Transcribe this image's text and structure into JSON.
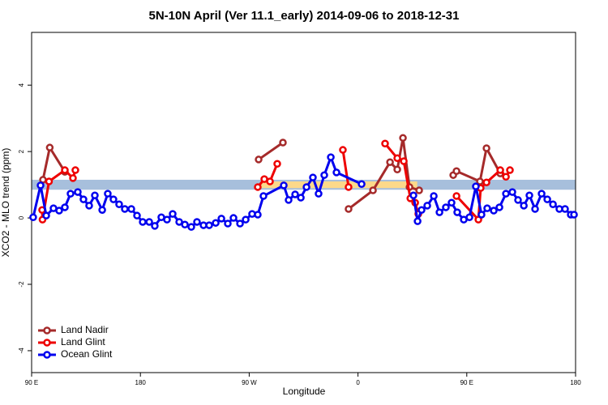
{
  "chart_data": {
    "type": "line",
    "title": "5N-10N April (Ver 11.1_early)   2014-09-06 to 2018-12-31",
    "x_label": "Longitude",
    "y_label": "XCO2 - MLO trend (ppm)",
    "xlim": [
      90,
      540
    ],
    "ylim": [
      -4.66,
      5.59
    ],
    "xticks": [
      {
        "value": 90,
        "label": "90 E"
      },
      {
        "value": 180,
        "label": "180"
      },
      {
        "value": 270,
        "label": "90 W"
      },
      {
        "value": 360,
        "label": "0"
      },
      {
        "value": 450,
        "label": "90 E"
      },
      {
        "value": 540,
        "label": "180"
      }
    ],
    "yticks": [
      -4,
      -2,
      0,
      2,
      4
    ],
    "legend": "bottom-left",
    "bands": [
      {
        "color": "#a7bfdc",
        "x": [
          90,
          540
        ],
        "y": [
          0.85,
          1.15
        ]
      },
      {
        "color": "#fcd98a",
        "x": [
          280,
          409
        ],
        "y": [
          0.9,
          1.1
        ]
      }
    ],
    "series": [
      {
        "name": "Land Nadir",
        "color": "#a52a2a",
        "x": [
          99.4,
          105.0,
          117.5,
          277.8,
          297.9,
          352.2,
          372.4,
          386.5,
          392.5,
          397.2,
          402.6,
          410.6,
          438.8,
          441.5,
          460.9,
          466.3,
          477.7
        ],
        "values": [
          1.15,
          2.12,
          1.39,
          1.76,
          2.27,
          0.27,
          0.83,
          1.68,
          1.46,
          2.41,
          0.93,
          0.83,
          1.29,
          1.41,
          1.1,
          2.1,
          1.34
        ]
      },
      {
        "name": "Land Glint",
        "color": "#ee0000",
        "x": [
          98.7,
          99.0,
          104.4,
          117.5,
          124.2,
          126.2,
          277.1,
          282.5,
          287.2,
          293.2,
          347.5,
          352.2,
          382.4,
          392.5,
          397.9,
          403.3,
          407.3,
          409.9,
          441.5,
          459.6,
          461.5,
          466.3,
          477.7,
          482.4,
          485.7
        ],
        "values": [
          0.24,
          -0.05,
          1.1,
          1.44,
          1.2,
          1.44,
          0.93,
          1.17,
          1.1,
          1.63,
          2.05,
          0.93,
          2.24,
          1.8,
          1.71,
          0.59,
          0.46,
          0.12,
          0.66,
          -0.05,
          0.9,
          1.07,
          1.44,
          1.24,
          1.44
        ]
      },
      {
        "name": "Ocean Glint",
        "color": "#0000ee",
        "x": [
          91.3,
          97.4,
          102.1,
          108.1,
          112.8,
          117.5,
          122.2,
          128.2,
          132.9,
          137.6,
          142.3,
          148.4,
          153.0,
          157.7,
          162.4,
          167.1,
          172.5,
          177.2,
          181.9,
          187.3,
          191.9,
          197.3,
          202.0,
          206.7,
          212.1,
          216.8,
          222.1,
          226.8,
          232.2,
          236.9,
          242.3,
          247.0,
          252.3,
          257.0,
          262.4,
          267.1,
          272.4,
          277.1,
          281.8,
          298.6,
          302.6,
          308.0,
          312.7,
          317.4,
          322.7,
          327.4,
          332.1,
          337.5,
          342.2,
          363.0,
          405.9,
          409.3,
          412.6,
          417.3,
          422.7,
          427.4,
          432.7,
          437.4,
          442.1,
          447.5,
          452.2,
          457.5,
          462.2,
          466.9,
          472.3,
          477.0,
          482.4,
          487.7,
          492.4,
          497.2,
          501.8,
          506.5,
          511.9,
          516.6,
          521.3,
          526.6,
          531.3,
          536.0,
          538.7
        ],
        "values": [
          0.02,
          0.98,
          0.07,
          0.29,
          0.22,
          0.32,
          0.73,
          0.78,
          0.56,
          0.37,
          0.68,
          0.24,
          0.73,
          0.56,
          0.41,
          0.27,
          0.27,
          0.07,
          -0.12,
          -0.12,
          -0.24,
          0.02,
          -0.05,
          0.12,
          -0.12,
          -0.2,
          -0.27,
          -0.12,
          -0.22,
          -0.22,
          -0.15,
          -0.02,
          -0.17,
          0,
          -0.17,
          -0.05,
          0.12,
          0.1,
          0.66,
          0.98,
          0.54,
          0.71,
          0.61,
          0.93,
          1.22,
          0.73,
          1.29,
          1.83,
          1.37,
          1.02,
          0.68,
          -0.1,
          0.24,
          0.37,
          0.66,
          0.17,
          0.32,
          0.46,
          0.17,
          -0.05,
          0.02,
          0.95,
          0.1,
          0.29,
          0.22,
          0.32,
          0.73,
          0.78,
          0.54,
          0.37,
          0.68,
          0.27,
          0.73,
          0.56,
          0.41,
          0.27,
          0.27,
          0.1,
          0.1
        ]
      }
    ]
  }
}
